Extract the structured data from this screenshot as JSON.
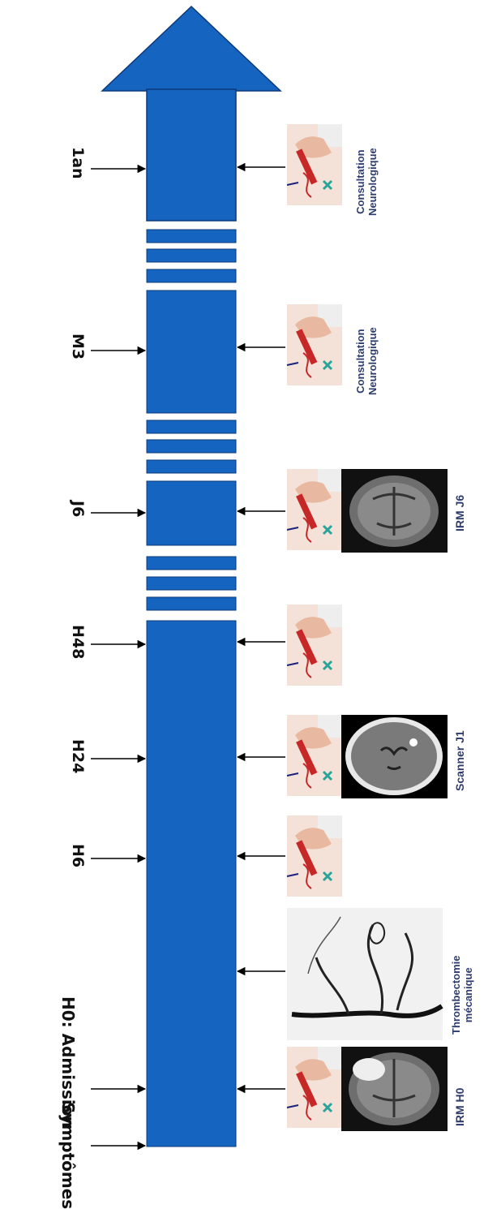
{
  "timepoints": [
    {
      "id": "1an",
      "label": "1an"
    },
    {
      "id": "m3",
      "label": "M3"
    },
    {
      "id": "j6",
      "label": "J6"
    },
    {
      "id": "h48",
      "label": "H48"
    },
    {
      "id": "h24",
      "label": "H24"
    },
    {
      "id": "h6",
      "label": "H6"
    },
    {
      "id": "h0",
      "label": "H0: Admission"
    },
    {
      "id": "symptomes",
      "label": "Symptômes"
    }
  ],
  "events": [
    {
      "id": "1an",
      "caption_line1": "Consultation",
      "caption_line2": "Neurologique",
      "images": [
        "blood-draw-photo"
      ]
    },
    {
      "id": "m3",
      "caption_line1": "Consultation",
      "caption_line2": "Neurologique",
      "images": [
        "blood-draw-photo"
      ]
    },
    {
      "id": "j6",
      "caption_line1": "IRM J6",
      "caption_line2": "",
      "images": [
        "blood-draw-photo",
        "mri-brain-scan"
      ]
    },
    {
      "id": "h48",
      "caption_line1": "",
      "caption_line2": "",
      "images": [
        "blood-draw-photo"
      ]
    },
    {
      "id": "h24",
      "caption_line1": "Scanner J1",
      "caption_line2": "",
      "images": [
        "blood-draw-photo",
        "ct-brain-scan"
      ]
    },
    {
      "id": "h6",
      "caption_line1": "",
      "caption_line2": "",
      "images": [
        "blood-draw-photo"
      ]
    },
    {
      "id": "thrombectomie",
      "caption_line1": "Thrombectomie",
      "caption_line2": "mécanique",
      "images": [
        "angiography-image"
      ]
    },
    {
      "id": "h0",
      "caption_line1": "IRM H0",
      "caption_line2": "",
      "images": [
        "blood-draw-photo",
        "mri-brain-scan"
      ]
    }
  ],
  "colors": {
    "timeline": "#1565c0",
    "timeline_border": "#0d3a7a",
    "caption": "#2e3d6e",
    "arrow": "#000000"
  }
}
